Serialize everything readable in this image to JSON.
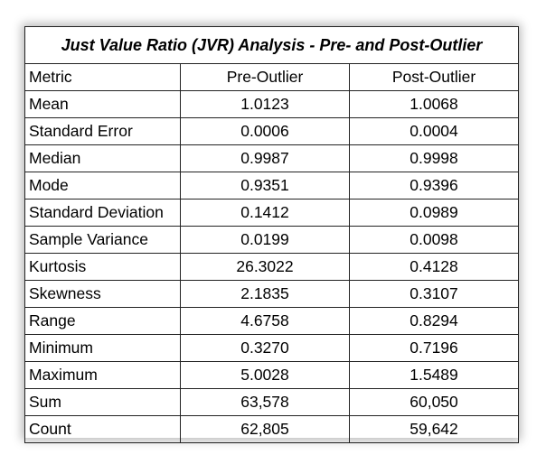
{
  "table": {
    "title": "Just Value Ratio (JVR) Analysis  - Pre- and Post-Outlier",
    "headers": [
      "Metric",
      "Pre-Outlier",
      "Post-Outlier"
    ],
    "rows": [
      [
        "Mean",
        "1.0123",
        "1.0068"
      ],
      [
        "Standard Error",
        "0.0006",
        "0.0004"
      ],
      [
        "Median",
        "0.9987",
        "0.9998"
      ],
      [
        "Mode",
        "0.9351",
        "0.9396"
      ],
      [
        "Standard Deviation",
        "0.1412",
        "0.0989"
      ],
      [
        "Sample Variance",
        "0.0199",
        "0.0098"
      ],
      [
        "Kurtosis",
        "26.3022",
        "0.4128"
      ],
      [
        "Skewness",
        "2.1835",
        "0.3107"
      ],
      [
        "Range",
        "4.6758",
        "0.8294"
      ],
      [
        "Minimum",
        "0.3270",
        "0.7196"
      ],
      [
        "Maximum",
        "5.0028",
        "1.5489"
      ],
      [
        "Sum",
        "63,578",
        "60,050"
      ],
      [
        "Count",
        "62,805",
        "59,642"
      ]
    ]
  }
}
